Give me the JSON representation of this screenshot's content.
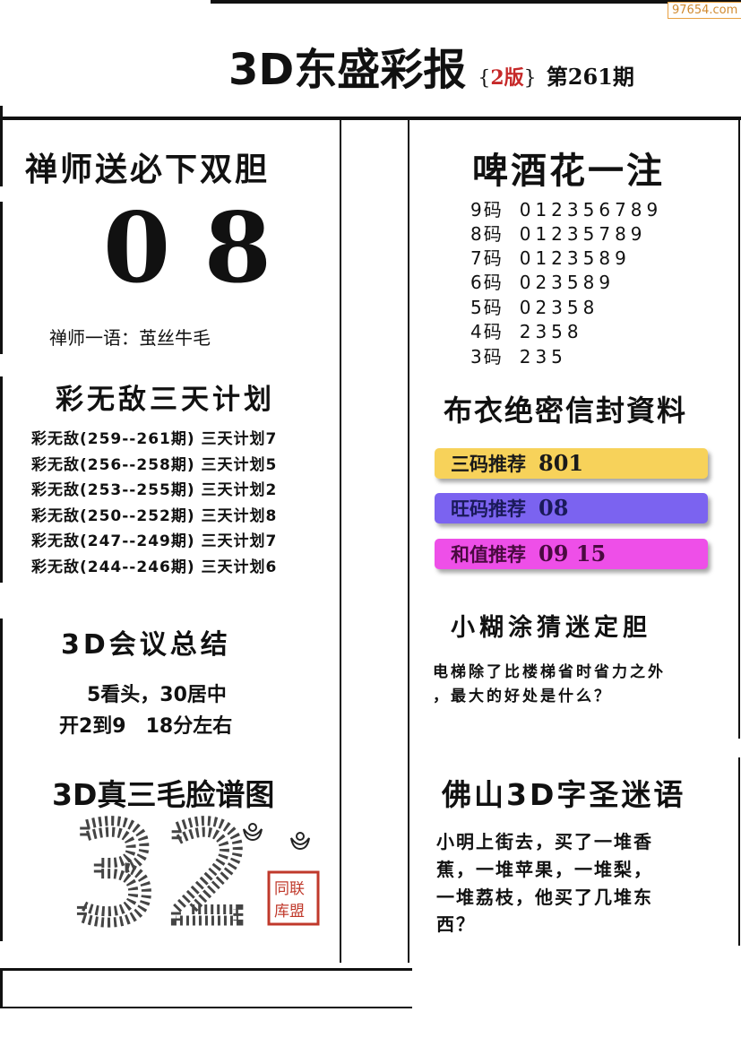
{
  "watermark": "97654.com",
  "header": {
    "title": "3D东盛彩报",
    "edition_open": "{",
    "edition": "2版",
    "edition_close": "}",
    "issue": "第261期"
  },
  "left": {
    "double_gall": {
      "title": "禅师送必下双胆",
      "numbers": "0 8",
      "saying": "禅师一语：茧丝牛毛"
    },
    "plan": {
      "title": "彩无敌三天计划",
      "rows": [
        "彩无敌(259--261期) 三天计划7",
        "彩无敌(256--258期) 三天计划5",
        "彩无敌(253--255期) 三天计划2",
        "彩无敌(250--252期) 三天计划8",
        "彩无敌(247--249期) 三天计划7",
        "彩无敌(244--246期) 三天计划6"
      ]
    },
    "meeting": {
      "title": "3D会议总结",
      "line1": "5看头，30居中",
      "line2": "开2到9　18分左右"
    },
    "face_chart": {
      "title": "3D真三毛脸谱图",
      "figure": "32",
      "stamp": "联盟同库"
    }
  },
  "right": {
    "beer": {
      "title": "啤酒花一注",
      "rows": [
        {
          "label": "9码",
          "value": "012356789"
        },
        {
          "label": "8码",
          "value": "01235789"
        },
        {
          "label": "7码",
          "value": "0123589"
        },
        {
          "label": "6码",
          "value": "023589"
        },
        {
          "label": "5码",
          "value": "02358"
        },
        {
          "label": "4码",
          "value": "2358"
        },
        {
          "label": "3码",
          "value": "235"
        }
      ]
    },
    "envelope": {
      "title": "布衣绝密信封資料",
      "bars": [
        {
          "label": "三码推荐",
          "value": "801",
          "color": "#f7d25a"
        },
        {
          "label": "旺码推荐",
          "value": "08",
          "color": "#7b63f0"
        },
        {
          "label": "和值推荐",
          "value": "09 15",
          "color": "#ee4fe8"
        }
      ]
    },
    "riddle1": {
      "title": "小糊涂猜迷定胆",
      "line1": "电梯除了比楼梯省时省力之外",
      "line2": "，最大的好处是什么？"
    },
    "riddle2": {
      "title": "佛山3D字圣迷语",
      "lines": [
        "小明上街去，买了一堆香",
        "蕉，一堆苹果，一堆梨，",
        "一堆荔枝，他买了几堆东",
        "西？"
      ]
    }
  }
}
